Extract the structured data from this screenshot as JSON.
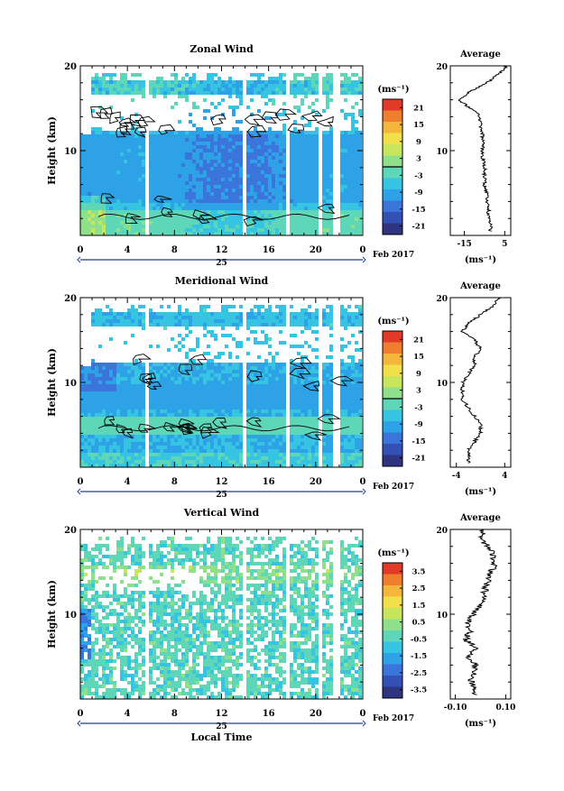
{
  "panels": [
    {
      "id": "zonal",
      "title": "Zonal Wind",
      "ylabel": "Height (km)",
      "ylim": [
        0,
        20
      ],
      "yticks": [
        20,
        10
      ],
      "xticks": [
        "0",
        "4",
        "8",
        "12",
        "16",
        "20",
        "0"
      ],
      "day_label": "25",
      "month_label": "Feb 2017",
      "unit_label": "(ms⁻¹)",
      "colorbar_ticks": [
        "21",
        "15",
        "9",
        "3",
        "-3",
        "-9",
        "-15",
        "-21"
      ],
      "colorbar_range": [
        -24,
        24
      ],
      "avg_title": "Average",
      "avg_xticks": [
        "-15",
        "5"
      ],
      "avg_xlim": [
        -22,
        8
      ],
      "avg_unit": "(ms⁻¹)",
      "avg_yticks": [
        20,
        10
      ]
    },
    {
      "id": "meridional",
      "title": "Meridional Wind",
      "ylabel": "Height (km)",
      "ylim": [
        0,
        20
      ],
      "yticks": [
        20,
        10
      ],
      "xticks": [
        "0",
        "4",
        "8",
        "12",
        "16",
        "20",
        "0"
      ],
      "day_label": "25",
      "month_label": "Feb 2017",
      "unit_label": "(ms⁻¹)",
      "colorbar_ticks": [
        "21",
        "15",
        "9",
        "3",
        "-3",
        "-9",
        "-15",
        "-21"
      ],
      "colorbar_range": [
        -24,
        24
      ],
      "avg_title": "Average",
      "avg_xticks": [
        "-4",
        "4"
      ],
      "avg_xlim": [
        -5,
        5
      ],
      "avg_unit": "(ms⁻¹)",
      "avg_yticks": [
        20,
        10
      ]
    },
    {
      "id": "vertical",
      "title": "Vertical Wind",
      "ylabel": "Height (km)",
      "ylim": [
        0,
        20
      ],
      "yticks": [
        20,
        10
      ],
      "xticks": [
        "0",
        "4",
        "8",
        "12",
        "16",
        "20",
        "0"
      ],
      "day_label": "25",
      "month_label": "Feb 2017",
      "xlabel": "Local Time",
      "unit_label": "(ms⁻¹)",
      "colorbar_ticks": [
        "3.5",
        "2.5",
        "1.5",
        "0.5",
        "-0.5",
        "-1.5",
        "-2.5",
        "-3.5"
      ],
      "colorbar_range": [
        -4,
        4
      ],
      "avg_title": "Average",
      "avg_xticks": [
        "-0.10",
        "0.10"
      ],
      "avg_xlim": [
        -0.12,
        0.12
      ],
      "avg_unit": "(ms⁻¹)",
      "avg_yticks": [
        20,
        10
      ]
    }
  ],
  "chart_data": [
    {
      "type": "heatmap",
      "title": "Zonal Wind",
      "xlabel": "",
      "ylabel": "Height (km)",
      "x_range_hours": [
        0,
        24
      ],
      "ylim": [
        0,
        20
      ],
      "colorbar_unit": "(ms⁻¹)",
      "colorbar_range": [
        -24,
        24
      ],
      "data_gaps_hours": [
        5.6,
        13.8,
        17.6,
        20.2,
        21.6
      ],
      "profile_km": [
        1,
        2,
        3,
        4,
        5,
        6,
        7,
        8,
        9,
        10,
        11,
        12,
        13,
        14,
        15,
        16,
        17,
        18,
        19,
        20
      ],
      "profile_values": [
        -2,
        -3,
        -3,
        -4,
        -4,
        -5,
        -5,
        -5,
        -6,
        -6,
        -6,
        -6,
        -7,
        -7,
        -12,
        -18,
        -12,
        -4,
        2,
        6
      ],
      "average_xlim": [
        -22,
        8
      ]
    },
    {
      "type": "heatmap",
      "title": "Meridional Wind",
      "xlabel": "",
      "ylabel": "Height (km)",
      "x_range_hours": [
        0,
        24
      ],
      "ylim": [
        0,
        20
      ],
      "colorbar_unit": "(ms⁻¹)",
      "colorbar_range": [
        -24,
        24
      ],
      "data_gaps_hours": [
        5.6,
        13.8,
        17.6,
        20.2,
        21.6
      ],
      "profile_km": [
        1,
        2,
        3,
        4,
        5,
        6,
        7,
        8,
        9,
        10,
        11,
        12,
        13,
        14,
        15,
        16,
        17,
        18,
        19,
        20
      ],
      "profile_values": [
        -2,
        -2,
        -1,
        0,
        0,
        -1,
        -2,
        -3,
        -3,
        -3,
        -2,
        -1,
        -1,
        0,
        -1,
        -3,
        -2,
        0,
        2,
        3
      ],
      "average_xlim": [
        -5,
        5
      ]
    },
    {
      "type": "heatmap",
      "title": "Vertical Wind",
      "xlabel": "Local Time",
      "ylabel": "Height (km)",
      "x_range_hours": [
        0,
        24
      ],
      "ylim": [
        0,
        20
      ],
      "colorbar_unit": "(ms⁻¹)",
      "colorbar_range": [
        -4,
        4
      ],
      "data_gaps_hours": [
        5.6,
        13.8,
        17.6,
        20.2,
        21.6
      ],
      "profile_km": [
        1,
        2,
        3,
        4,
        5,
        6,
        7,
        8,
        9,
        10,
        11,
        12,
        13,
        14,
        15,
        16,
        17,
        18,
        19,
        20
      ],
      "profile_values": [
        -0.02,
        -0.04,
        -0.03,
        -0.02,
        -0.05,
        -0.02,
        -0.06,
        -0.04,
        -0.05,
        -0.03,
        0.0,
        0.01,
        0.02,
        0.03,
        0.04,
        0.06,
        0.05,
        0.03,
        0.0,
        0.01
      ],
      "average_xlim": [
        -0.12,
        0.12
      ]
    }
  ],
  "colors": {
    "colormap": [
      "#2e3480",
      "#3350b5",
      "#3b74db",
      "#2ea2e6",
      "#36c4e3",
      "#5ed6b8",
      "#8fe08b",
      "#c8e65c",
      "#f2e04a",
      "#f5b73b",
      "#ef7f2f",
      "#e23a28"
    ],
    "contour": "#000000",
    "axis": "#000000",
    "time_bar": "#1f3c9c"
  }
}
